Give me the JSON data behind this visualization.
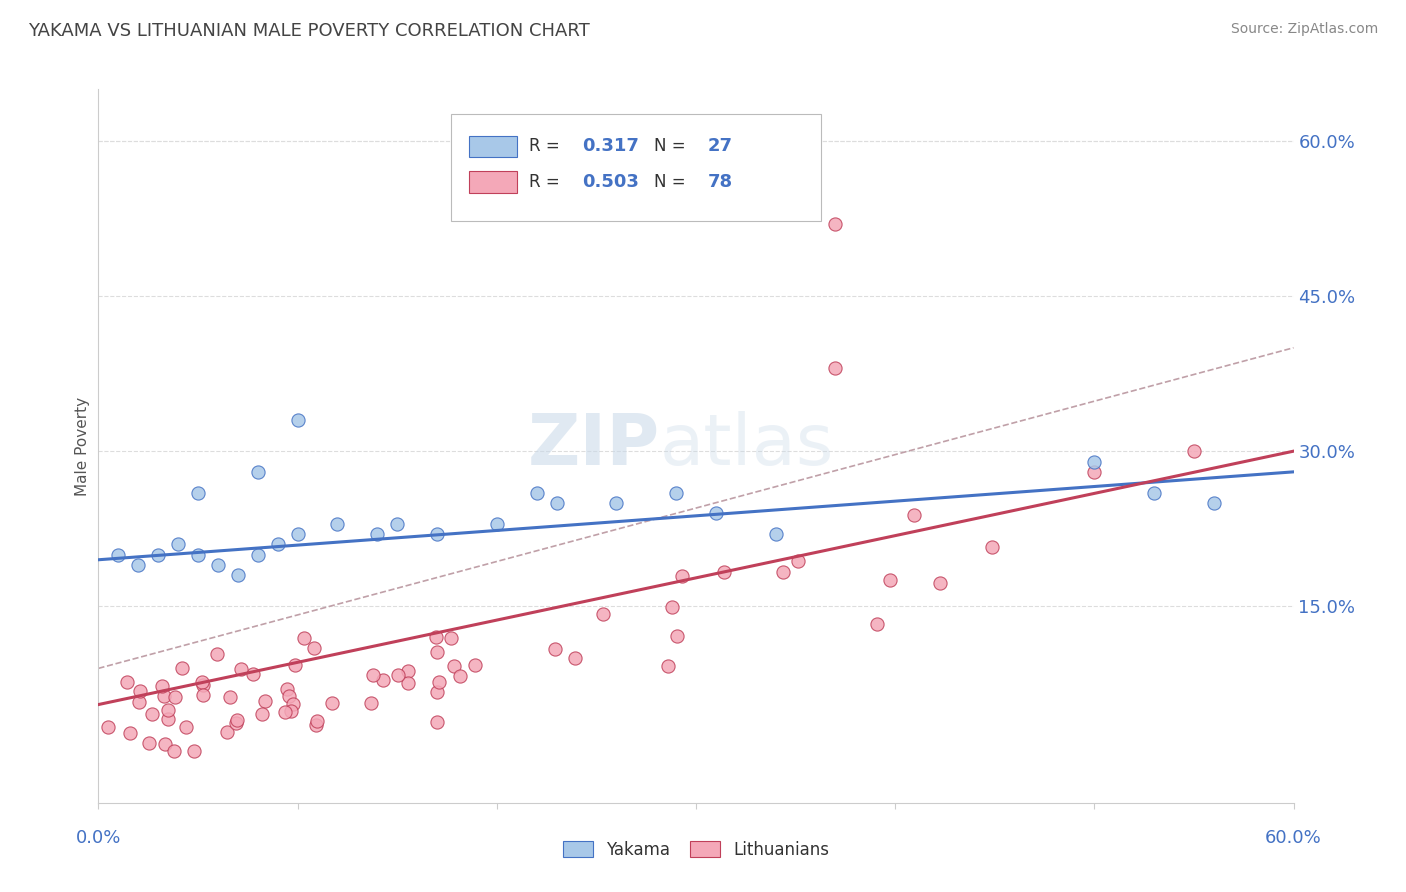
{
  "title": "YAKAMA VS LITHUANIAN MALE POVERTY CORRELATION CHART",
  "source": "Source: ZipAtlas.com",
  "ylabel": "Male Poverty",
  "right_yticks": [
    0.15,
    0.3,
    0.45,
    0.6
  ],
  "right_yticklabels": [
    "15.0%",
    "30.0%",
    "45.0%",
    "60.0%"
  ],
  "xlim": [
    0.0,
    0.6
  ],
  "ylim": [
    -0.04,
    0.65
  ],
  "yakama_color": "#A8C8E8",
  "lithuanian_color": "#F4A8B8",
  "yakama_line_color": "#4472C4",
  "lithuanian_line_color": "#C0405A",
  "ref_line_color": "#C0A0A8",
  "legend_r_yakama": "0.317",
  "legend_n_yakama": "27",
  "legend_r_lithuanian": "0.503",
  "legend_n_lithuanian": "78",
  "watermark": "ZIPatlas",
  "title_color": "#444444",
  "source_color": "#888888",
  "axis_label_color": "#4472C4",
  "ylabel_color": "#555555",
  "grid_color": "#DDDDDD",
  "spine_color": "#CCCCCC"
}
